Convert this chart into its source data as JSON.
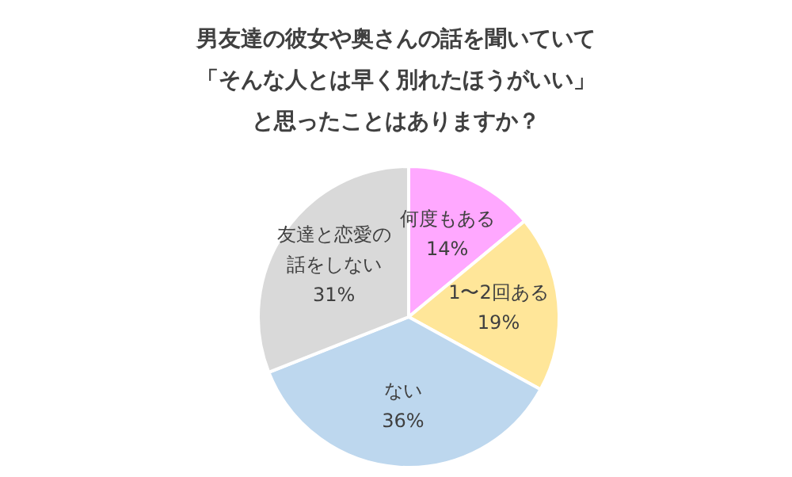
{
  "chart_data": {
    "type": "pie",
    "title": "男友達の彼女や奥さんの話を聞いていて「そんな人とは早く別れたほうがいい」と思ったことはありますか？",
    "categories": [
      "何度もある",
      "1〜2回ある",
      "ない",
      "友達と恋愛の話をしない"
    ],
    "values": [
      14,
      19,
      36,
      31
    ],
    "colors": [
      "#ffa8ff",
      "#ffe699",
      "#bdd7ee",
      "#d9d9d9"
    ],
    "value_labels": [
      "14%",
      "19%",
      "36%",
      "31%"
    ],
    "legend": false
  }
}
